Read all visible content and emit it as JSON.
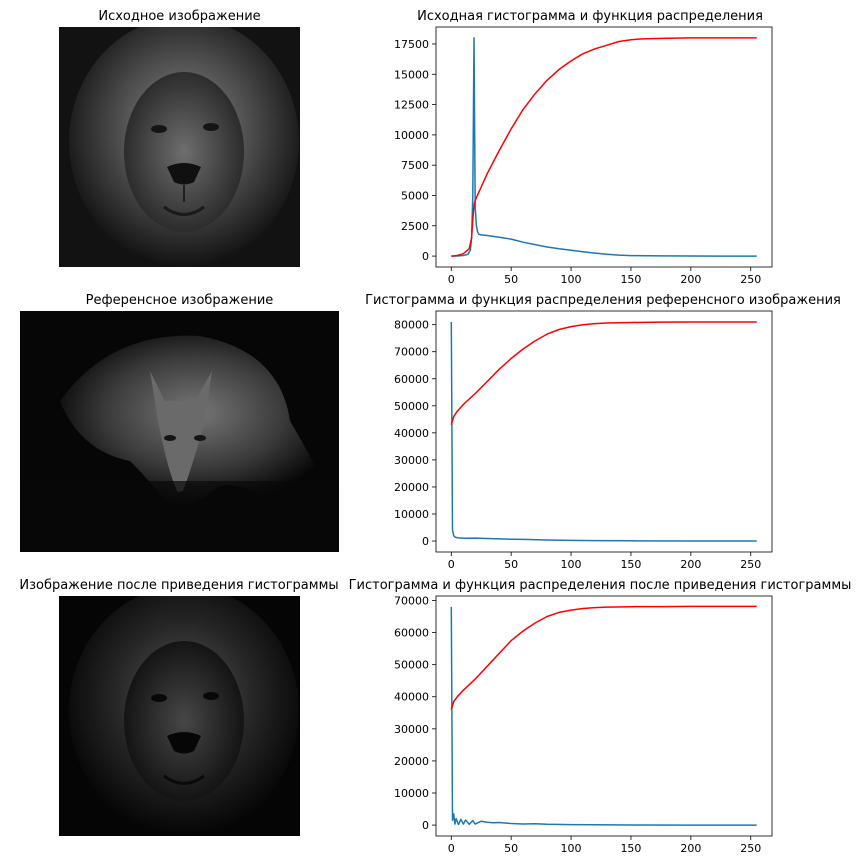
{
  "figure": {
    "panels": [
      {
        "image_title": "Исходное изображение",
        "image_subject": "lion"
      },
      {
        "image_title": "Референсное изображение",
        "image_subject": "wolf"
      },
      {
        "image_title": "Изображение после приведения гистограммы",
        "image_subject": "lion"
      }
    ]
  },
  "colors": {
    "histogram": "#1f77b4",
    "cdf": "#ff0000"
  },
  "chart_data": [
    {
      "type": "line",
      "title": "Исходная гистограмма и функция распределения",
      "xlabel": "",
      "ylabel": "",
      "xlim": [
        0,
        255
      ],
      "ylim": [
        0,
        18000
      ],
      "xticks": [
        0,
        50,
        100,
        150,
        200,
        250
      ],
      "yticks": [
        0,
        2500,
        5000,
        7500,
        10000,
        12500,
        15000,
        17500
      ],
      "grid": false,
      "series": [
        {
          "role": "histogram",
          "color": "#1f77b4",
          "x": [
            0,
            5,
            10,
            14,
            16,
            17,
            18,
            19,
            20,
            21,
            22,
            23,
            25,
            30,
            40,
            50,
            60,
            70,
            80,
            90,
            100,
            110,
            120,
            130,
            140,
            150,
            175,
            200,
            225,
            255
          ],
          "y": [
            0,
            10,
            50,
            150,
            500,
            1500,
            5000,
            18000,
            4000,
            2500,
            2000,
            1800,
            1750,
            1700,
            1550,
            1400,
            1150,
            950,
            750,
            600,
            480,
            360,
            250,
            150,
            80,
            40,
            15,
            5,
            0,
            0
          ]
        },
        {
          "role": "cdf",
          "color": "#ff0000",
          "x": [
            0,
            5,
            10,
            15,
            17,
            18,
            19,
            20,
            25,
            30,
            40,
            50,
            60,
            70,
            80,
            90,
            100,
            110,
            120,
            130,
            140,
            150,
            160,
            180,
            200,
            220,
            255
          ],
          "y": [
            0,
            50,
            200,
            600,
            1500,
            3000,
            4200,
            4600,
            5700,
            6800,
            8700,
            10500,
            12100,
            13400,
            14500,
            15400,
            16100,
            16700,
            17100,
            17400,
            17700,
            17850,
            17920,
            17980,
            18000,
            18000,
            18000
          ]
        }
      ]
    },
    {
      "type": "line",
      "title": "Гистограмма и функция распределения референсного изображения",
      "xlabel": "",
      "ylabel": "",
      "xlim": [
        0,
        255
      ],
      "ylim": [
        0,
        81000
      ],
      "xticks": [
        0,
        50,
        100,
        150,
        200,
        250
      ],
      "yticks": [
        0,
        10000,
        20000,
        30000,
        40000,
        50000,
        60000,
        70000,
        80000
      ],
      "grid": false,
      "series": [
        {
          "role": "histogram",
          "color": "#1f77b4",
          "x": [
            0,
            1,
            2,
            3,
            5,
            10,
            20,
            30,
            40,
            50,
            60,
            80,
            100,
            120,
            150,
            200,
            255
          ],
          "y": [
            81000,
            4000,
            2000,
            1500,
            1200,
            1000,
            1100,
            950,
            800,
            700,
            600,
            400,
            250,
            150,
            80,
            30,
            0
          ]
        },
        {
          "role": "cdf",
          "color": "#ff0000",
          "x": [
            0,
            2,
            5,
            10,
            20,
            30,
            40,
            50,
            60,
            70,
            80,
            90,
            100,
            110,
            120,
            130,
            150,
            175,
            200,
            225,
            255
          ],
          "y": [
            43000,
            46000,
            48000,
            50500,
            54500,
            59000,
            63500,
            67500,
            71000,
            74000,
            76500,
            78200,
            79300,
            80000,
            80400,
            80600,
            80800,
            80950,
            81000,
            81000,
            81000
          ]
        }
      ]
    },
    {
      "type": "line",
      "title": "Гистограмма и функция распределения после приведения гистограммы",
      "xlabel": "",
      "ylabel": "",
      "xlim": [
        0,
        255
      ],
      "ylim": [
        0,
        68000
      ],
      "xticks": [
        0,
        50,
        100,
        150,
        200,
        250
      ],
      "yticks": [
        0,
        10000,
        20000,
        30000,
        40000,
        50000,
        60000,
        70000
      ],
      "grid": false,
      "series": [
        {
          "role": "histogram",
          "color": "#1f77b4",
          "x": [
            0,
            1,
            2,
            3,
            4,
            6,
            8,
            10,
            12,
            15,
            18,
            20,
            25,
            30,
            35,
            40,
            50,
            60,
            70,
            80,
            100,
            120,
            150,
            200,
            255
          ],
          "y": [
            68000,
            1500,
            3500,
            300,
            2000,
            200,
            1800,
            300,
            1600,
            250,
            1400,
            300,
            1200,
            900,
            700,
            800,
            500,
            350,
            400,
            250,
            150,
            80,
            30,
            10,
            0
          ]
        },
        {
          "role": "cdf",
          "color": "#ff0000",
          "x": [
            0,
            2,
            5,
            10,
            20,
            30,
            40,
            50,
            60,
            70,
            80,
            90,
            100,
            110,
            120,
            130,
            150,
            175,
            200,
            225,
            255
          ],
          "y": [
            36000,
            38500,
            40000,
            42000,
            45500,
            49500,
            53500,
            57500,
            60500,
            63000,
            65000,
            66300,
            67000,
            67500,
            67800,
            67950,
            68050,
            68100,
            68150,
            68150,
            68150
          ]
        }
      ]
    }
  ]
}
